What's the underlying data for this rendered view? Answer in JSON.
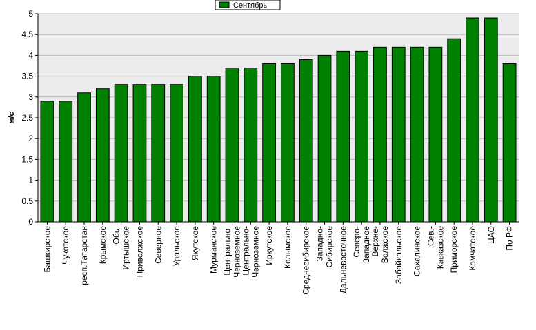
{
  "chart_data": {
    "type": "bar",
    "ylabel": "м/с",
    "ylim": [
      0,
      5
    ],
    "yticks": [
      0,
      0.5,
      1,
      1.5,
      2,
      2.5,
      3,
      3.5,
      4,
      4.5,
      5
    ],
    "grid": true,
    "legend": "top-center",
    "categories": [
      [
        "Башкирское"
      ],
      [
        "Чукотское"
      ],
      [
        "респ.Татарстан"
      ],
      [
        "Крымское"
      ],
      [
        "Обь-",
        "Иртышское"
      ],
      [
        "Приволжское"
      ],
      [
        "Северное"
      ],
      [
        "Уральское"
      ],
      [
        "Якутское"
      ],
      [
        "Мурманское"
      ],
      [
        "Центрально-",
        "Черноземное"
      ],
      [
        "Центрально-",
        "Черноземное"
      ],
      [
        "Иркутское"
      ],
      [
        "Колымское"
      ],
      [
        "Среднесибирское"
      ],
      [
        "Западно-",
        "Сибирское"
      ],
      [
        "Дальневосточное"
      ],
      [
        "Северо-",
        "Западное"
      ],
      [
        "Верхне-",
        "Волжское"
      ],
      [
        "Забайкальское"
      ],
      [
        "Сахалинское"
      ],
      [
        "Сев.-",
        "Кавказское"
      ],
      [
        "Приморское"
      ],
      [
        "Камчатское"
      ],
      [
        "ЦАО"
      ],
      [
        "По РФ"
      ]
    ],
    "series": [
      {
        "name": "Сентябрь",
        "color": "#008000",
        "values": [
          2.9,
          2.9,
          3.1,
          3.2,
          3.3,
          3.3,
          3.3,
          3.3,
          3.5,
          3.5,
          3.7,
          3.7,
          3.8,
          3.8,
          3.9,
          4.0,
          4.1,
          4.1,
          4.2,
          4.2,
          4.2,
          4.2,
          4.4,
          4.9,
          4.9,
          3.8
        ]
      }
    ]
  }
}
